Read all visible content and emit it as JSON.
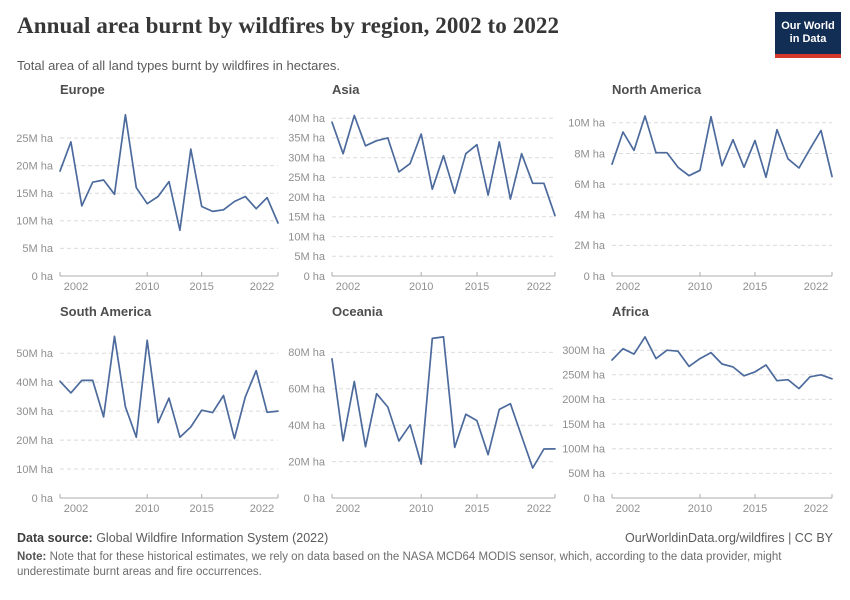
{
  "header": {
    "title": "Annual area burnt by wildfires by region, 2002 to 2022",
    "subtitle": "Total area of all land types burnt by wildfires in hectares."
  },
  "logo": {
    "line1": "Our World",
    "line2": "in Data"
  },
  "colors": {
    "line": "#4C6A9C",
    "grid": "#dbdbdb",
    "axis": "#acacac",
    "tick_label": "#8f8f8f",
    "facet_title": "#4e4e4e",
    "logo_bg": "#132e54",
    "logo_red": "#d7382d"
  },
  "chart_data": {
    "type": "line",
    "unit": "hectares",
    "values_scale": "millions of hectares",
    "grid": "dashed horizontal gridlines, light gray",
    "legend": "none (small multiples, one series per facet)",
    "x": [
      2002,
      2003,
      2004,
      2005,
      2006,
      2007,
      2008,
      2009,
      2010,
      2011,
      2012,
      2013,
      2014,
      2015,
      2016,
      2017,
      2018,
      2019,
      2020,
      2021,
      2022
    ],
    "x_tick_years": [
      2002,
      2010,
      2015,
      2022
    ],
    "x_tick_labels": [
      "2002",
      "2010",
      "2015",
      "2022"
    ],
    "facets": [
      {
        "title": "Europe",
        "ylim": [
          0,
          30.8
        ],
        "y_tick_values": [
          0,
          5,
          10,
          15,
          20,
          25
        ],
        "y_tick_labels": [
          "0 ha",
          "5M ha",
          "10M ha",
          "15M ha",
          "20M ha",
          "25M ha"
        ],
        "values": [
          19,
          24.3,
          12.7,
          17,
          17.4,
          14.8,
          29.2,
          16,
          13.1,
          14.4,
          17.1,
          8.3,
          23,
          12.6,
          11.7,
          12,
          13.5,
          14.4,
          12.2,
          14.2,
          9.6
        ]
      },
      {
        "title": "Asia",
        "ylim": [
          0,
          43.1
        ],
        "y_tick_values": [
          0,
          5,
          10,
          15,
          20,
          25,
          30,
          35,
          40
        ],
        "y_tick_labels": [
          "0 ha",
          "5M ha",
          "10M ha",
          "15M ha",
          "20M ha",
          "25M ha",
          "30M ha",
          "35M ha",
          "40M ha"
        ],
        "values": [
          39,
          31,
          40.7,
          33,
          34.3,
          35,
          26.4,
          28.5,
          36,
          22,
          30.5,
          21,
          31,
          33.3,
          20.5,
          34,
          19.5,
          31,
          23.5,
          23.5,
          15.3
        ]
      },
      {
        "title": "North America",
        "ylim": [
          0,
          11.1
        ],
        "y_tick_values": [
          0,
          2,
          4,
          6,
          8,
          10
        ],
        "y_tick_labels": [
          "0 ha",
          "2M ha",
          "4M ha",
          "6M ha",
          "8M ha",
          "10M ha"
        ],
        "values": [
          7.3,
          9.4,
          8.2,
          10.45,
          8.05,
          8.05,
          7.1,
          6.55,
          6.9,
          10.4,
          7.2,
          8.9,
          7.1,
          8.85,
          6.45,
          9.55,
          7.65,
          7.05,
          8.3,
          9.5,
          6.5
        ]
      },
      {
        "title": "South America",
        "ylim": [
          0,
          58.7
        ],
        "y_tick_values": [
          0,
          10,
          20,
          30,
          40,
          50
        ],
        "y_tick_labels": [
          "0 ha",
          "10M ha",
          "20M ha",
          "30M ha",
          "40M ha",
          "50M ha"
        ],
        "values": [
          40.3,
          36.3,
          40.6,
          40.6,
          28,
          55.8,
          31.5,
          21,
          54.5,
          26,
          34.5,
          21,
          24.5,
          30.3,
          29.5,
          35.4,
          20.5,
          34.9,
          44,
          29.6,
          30
        ]
      },
      {
        "title": "Oceania",
        "ylim": [
          0,
          93.4
        ],
        "y_tick_values": [
          0,
          20,
          40,
          60,
          80
        ],
        "y_tick_labels": [
          "0 ha",
          "20M ha",
          "40M ha",
          "60M ha",
          "80M ha"
        ],
        "values": [
          76.4,
          31.5,
          64,
          28.2,
          57.3,
          50,
          31.3,
          40.2,
          18.7,
          87.7,
          88.5,
          27.8,
          46,
          42.5,
          23.8,
          48.7,
          51.8,
          34,
          16.5,
          26.9,
          27
        ]
      },
      {
        "title": "Africa",
        "ylim": [
          0,
          345
        ],
        "y_tick_values": [
          0,
          50,
          100,
          150,
          200,
          250,
          300
        ],
        "y_tick_labels": [
          "0 ha",
          "50M ha",
          "100M ha",
          "150M ha",
          "200M ha",
          "250M ha",
          "300M ha"
        ],
        "values": [
          280,
          303,
          292,
          327,
          283,
          300,
          298,
          267,
          283,
          295,
          272,
          266,
          248,
          256,
          270,
          238,
          240,
          222,
          246,
          250,
          242
        ]
      }
    ]
  },
  "footer": {
    "source_label": "Data source:",
    "source_text": " Global Wildfire Information System (2022)",
    "credit": "OurWorldinData.org/wildfires | CC BY",
    "note_label": "Note:",
    "note_text": " Note that for these historical estimates, we rely on data based on the NASA MCD64 MODIS sensor, which, according to the data provider, might underestimate burnt areas and fire occurrences."
  }
}
